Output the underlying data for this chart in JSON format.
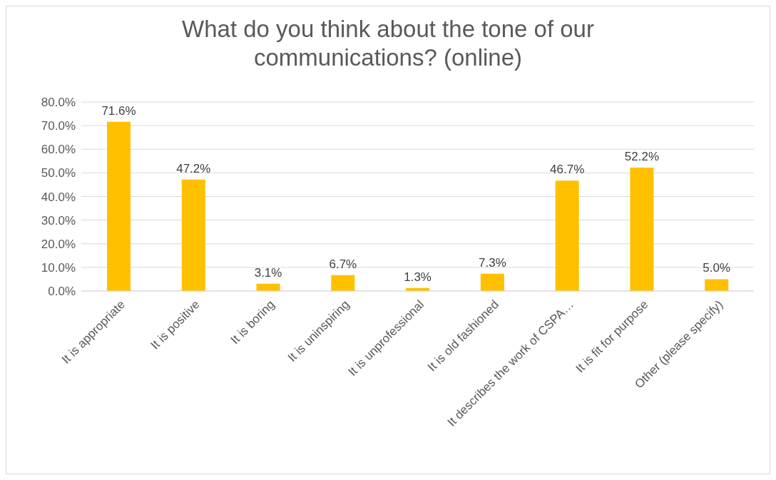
{
  "chart_data": {
    "type": "bar",
    "title": "What do you think about the tone of our communications?  (online)",
    "categories": [
      "It is appropriate",
      "It is positive",
      "It is boring",
      "It is uninspiring",
      "It is unprofessional",
      "It is old fashioned",
      "It describes the work of CSPA…",
      "It is fit for purpose",
      "Other (please specify)"
    ],
    "values": [
      71.6,
      47.2,
      3.1,
      6.7,
      1.3,
      7.3,
      46.7,
      52.2,
      5.0
    ],
    "value_labels": [
      "71.6%",
      "47.2%",
      "3.1%",
      "6.7%",
      "1.3%",
      "7.3%",
      "46.7%",
      "52.2%",
      "5.0%"
    ],
    "color": "#ffc000",
    "ylim": [
      0,
      80
    ],
    "yticks": [
      {
        "value": 0,
        "label": "0.0%"
      },
      {
        "value": 10,
        "label": "10.0%"
      },
      {
        "value": 20,
        "label": "20.0%"
      },
      {
        "value": 30,
        "label": "30.0%"
      },
      {
        "value": 40,
        "label": "40.0%"
      },
      {
        "value": 50,
        "label": "50.0%"
      },
      {
        "value": 60,
        "label": "60.0%"
      },
      {
        "value": 70,
        "label": "70.0%"
      },
      {
        "value": 80,
        "label": "80.0%"
      }
    ],
    "grid": "y"
  }
}
